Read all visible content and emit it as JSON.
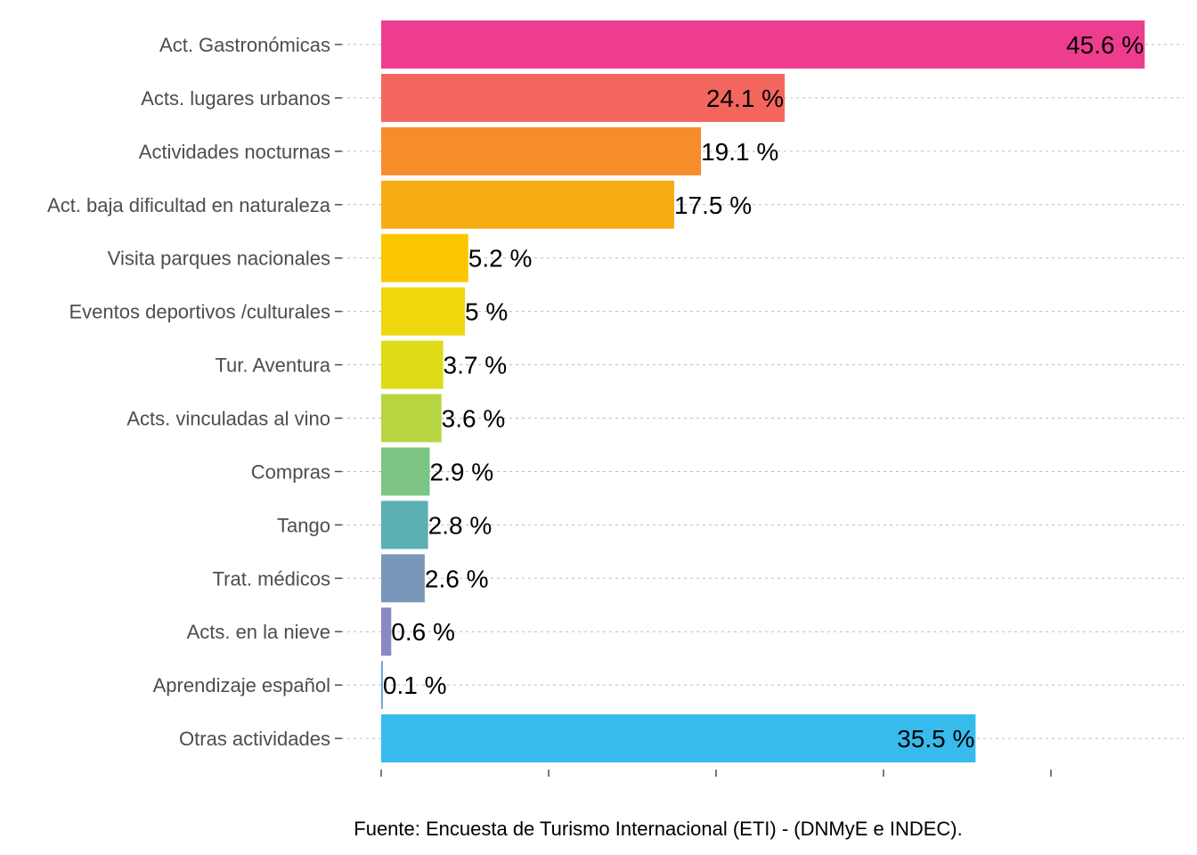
{
  "chart_data": {
    "type": "bar",
    "orientation": "horizontal",
    "categories": [
      "Act. Gastronómicas",
      "Acts. lugares urbanos",
      "Actividades nocturnas",
      "Act. baja dificultad en naturaleza",
      "Visita parques nacionales",
      "Eventos deportivos /culturales",
      "Tur. Aventura",
      "Acts. vinculadas al vino",
      "Compras",
      "Tango",
      "Trat. médicos",
      "Acts. en la nieve",
      "Aprendizaje español",
      "Otras actividades"
    ],
    "values": [
      45.6,
      24.1,
      19.1,
      17.5,
      5.2,
      5.0,
      3.7,
      3.6,
      2.9,
      2.8,
      2.6,
      0.6,
      0.1,
      35.5
    ],
    "value_labels": [
      "45.6 %",
      "24.1 %",
      "19.1 %",
      "17.5 %",
      "5.2 %",
      "5 %",
      "3.7 %",
      "3.6 %",
      "2.9 %",
      "2.8 %",
      "2.6 %",
      "0.6 %",
      "0.1 %",
      "35.5 %"
    ],
    "label_inside": [
      true,
      true,
      false,
      false,
      false,
      false,
      false,
      false,
      false,
      false,
      false,
      false,
      false,
      true
    ],
    "colors": [
      "#EE3D8F",
      "#F3665E",
      "#F68D2A",
      "#F8AC14",
      "#FBC600",
      "#F0D70E",
      "#DEDB17",
      "#B6D541",
      "#7CC584",
      "#5AB0B2",
      "#7A97BA",
      "#8A87C2",
      "#6AA3DC",
      "#37BBED"
    ],
    "x_unit": "%",
    "xlim": [
      0,
      46
    ],
    "x_ticks": [
      0,
      10,
      20,
      30,
      40
    ],
    "tick_labels_shown": false,
    "grid": "horizontal dotted",
    "legend": "none",
    "title": "",
    "xlabel": "",
    "ylabel": ""
  },
  "caption": "Fuente: Encuesta de Turismo Internacional (ETI) - (DNMyE e INDEC)."
}
